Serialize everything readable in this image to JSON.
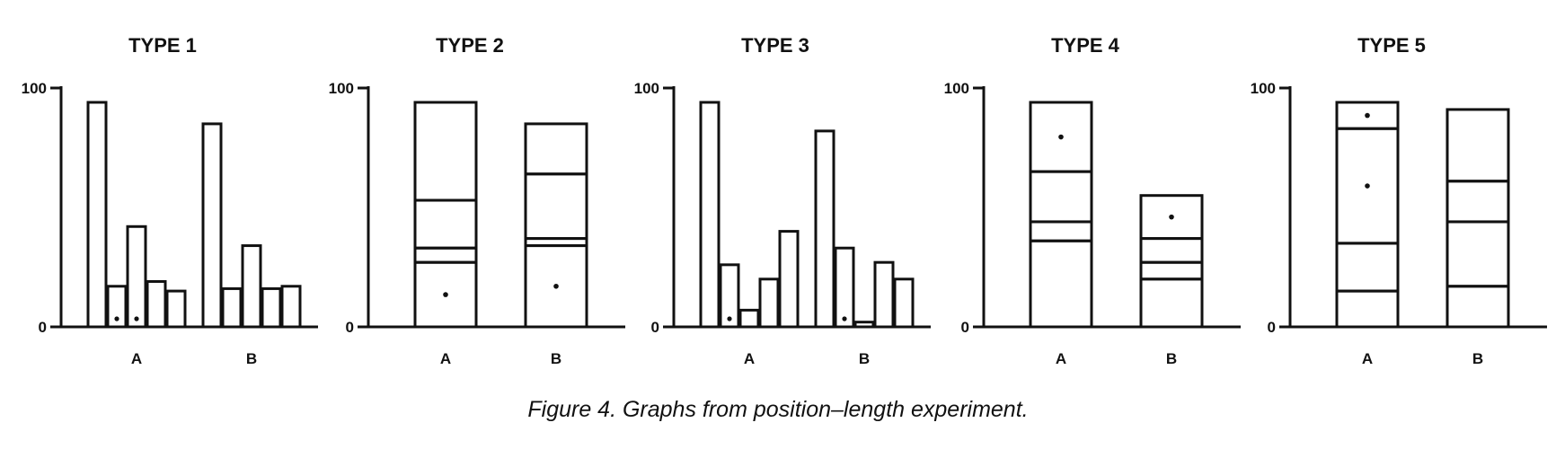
{
  "caption": "Figure 4. Graphs from position–length experiment.",
  "chart_data": [
    {
      "title": "TYPE 1",
      "type": "bar",
      "style": "grouped",
      "yticks": [
        0,
        100
      ],
      "ylim": [
        0,
        100
      ],
      "groups": [
        {
          "label": "A",
          "values": [
            94,
            17,
            42,
            19,
            15
          ],
          "marked": [
            1,
            2
          ]
        },
        {
          "label": "B",
          "values": [
            85,
            16,
            34,
            16,
            17
          ],
          "marked": []
        }
      ]
    },
    {
      "title": "TYPE 2",
      "type": "bar",
      "style": "stacked",
      "yticks": [
        0,
        100
      ],
      "ylim": [
        0,
        100
      ],
      "groups": [
        {
          "label": "A",
          "values": [
            27,
            6,
            20,
            41
          ],
          "marked": [
            0
          ]
        },
        {
          "label": "B",
          "values": [
            34,
            3,
            27,
            21
          ],
          "marked": [
            0
          ]
        }
      ]
    },
    {
      "title": "TYPE 3",
      "type": "bar",
      "style": "grouped",
      "yticks": [
        0,
        100
      ],
      "ylim": [
        0,
        100
      ],
      "groups": [
        {
          "label": "A",
          "values": [
            94,
            26,
            7,
            20,
            40
          ],
          "marked": [
            1
          ]
        },
        {
          "label": "B",
          "values": [
            82,
            33,
            2,
            27,
            20
          ],
          "marked": [
            1
          ]
        }
      ]
    },
    {
      "title": "TYPE 4",
      "type": "bar",
      "style": "stacked",
      "yticks": [
        0,
        100
      ],
      "ylim": [
        0,
        100
      ],
      "groups": [
        {
          "label": "A",
          "values": [
            36,
            8,
            21,
            29
          ],
          "marked": [
            3
          ]
        },
        {
          "label": "B",
          "values": [
            20,
            7,
            10,
            18
          ],
          "marked": [
            3
          ]
        }
      ]
    },
    {
      "title": "TYPE 5",
      "type": "bar",
      "style": "stacked",
      "yticks": [
        0,
        100
      ],
      "ylim": [
        0,
        100
      ],
      "groups": [
        {
          "label": "A",
          "values": [
            15,
            20,
            48,
            11
          ],
          "marked": [
            2,
            3
          ]
        },
        {
          "label": "B",
          "values": [
            17,
            27,
            17,
            30
          ],
          "marked": []
        }
      ]
    }
  ]
}
